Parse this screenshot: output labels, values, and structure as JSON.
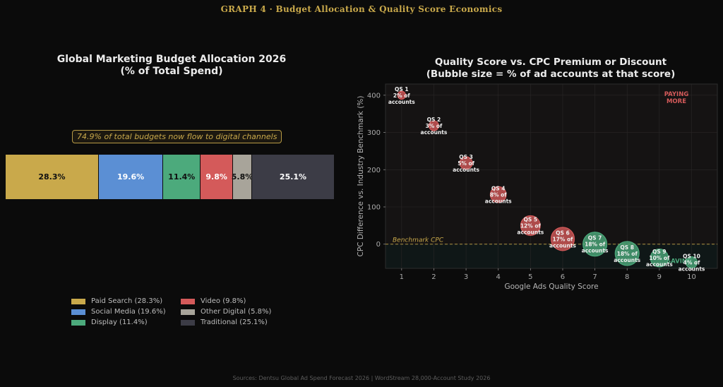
{
  "super_title": "GRAPH 4  ·  Budget Allocation & Quality Score Economics",
  "sources": "Sources: Dentsu Global Ad Spend Forecast 2026 | WordStream 28,000-Account Study 2026",
  "colors": {
    "gold": "#c9a94b",
    "blue": "#5b8fd4",
    "green": "#4caa7c",
    "red": "#d45a5a",
    "gray": "#a8a49a",
    "dark": "#3c3c46"
  },
  "chart_data": [
    {
      "type": "bar",
      "stacked": true,
      "title": "Global Marketing Budget Allocation 2026",
      "subtitle": "(% of Total Spend)",
      "annotation": "74.9% of total budgets now flow to digital channels",
      "series": [
        {
          "name": "Paid Search",
          "value": 28.3,
          "label": "28.3%",
          "legend": "Paid Search (28.3%)",
          "color": "#c9a94b",
          "text_color": "#111111"
        },
        {
          "name": "Social Media",
          "value": 19.6,
          "label": "19.6%",
          "legend": "Social Media (19.6%)",
          "color": "#5b8fd4",
          "text_color": "#ffffff"
        },
        {
          "name": "Display",
          "value": 11.4,
          "label": "11.4%",
          "legend": "Display (11.4%)",
          "color": "#4caa7c",
          "text_color": "#111111"
        },
        {
          "name": "Video",
          "value": 9.8,
          "label": "9.8%",
          "legend": "Video (9.8%)",
          "color": "#d45a5a",
          "text_color": "#ffffff"
        },
        {
          "name": "Other Digital",
          "value": 5.8,
          "label": "5.8%",
          "legend": "Other Digital (5.8%)",
          "color": "#a8a49a",
          "text_color": "#111111"
        },
        {
          "name": "Traditional",
          "value": 25.1,
          "label": "25.1%",
          "legend": "Traditional (25.1%)",
          "color": "#3c3c46",
          "text_color": "#ffffff"
        }
      ],
      "legend_position": "bottom"
    },
    {
      "type": "scatter",
      "bubble": true,
      "title": "Quality Score vs. CPC Premium or Discount",
      "subtitle": "(Bubble size = % of ad accounts at that score)",
      "xlabel": "Google Ads Quality Score",
      "ylabel": "CPC Difference vs. Industry Benchmark (%)",
      "xlim": [
        0.5,
        10.8
      ],
      "ylim": [
        -65,
        430
      ],
      "xticks": [
        "1",
        "2",
        "3",
        "4",
        "5",
        "6",
        "7",
        "8",
        "9",
        "10"
      ],
      "yticks": [
        "0",
        "100",
        "200",
        "300",
        "400"
      ],
      "grid": true,
      "benchmark_label": "Benchmark CPC",
      "zone_labels": {
        "paying_more": "PAYING\nMORE",
        "saving": "SAVING"
      },
      "points": [
        {
          "x": 1,
          "y": 400,
          "size_pct": 2,
          "label": "QS 1\n2% of\naccounts"
        },
        {
          "x": 2,
          "y": 318,
          "size_pct": 3,
          "label": "QS 2\n3% of\naccounts"
        },
        {
          "x": 3,
          "y": 218,
          "size_pct": 5,
          "label": "QS 3\n5% of\naccounts"
        },
        {
          "x": 4,
          "y": 133,
          "size_pct": 8,
          "label": "QS 4\n8% of\naccounts"
        },
        {
          "x": 5,
          "y": 50,
          "size_pct": 12,
          "label": "QS 5\n12% of\naccounts"
        },
        {
          "x": 6,
          "y": 14,
          "size_pct": 17,
          "label": "QS 6\n17% of\naccounts"
        },
        {
          "x": 7,
          "y": 0,
          "size_pct": 18,
          "label": "QS 7\n18% of\naccounts"
        },
        {
          "x": 8,
          "y": -25,
          "size_pct": 18,
          "label": "QS 8\n18% of\naccounts"
        },
        {
          "x": 9,
          "y": -37,
          "size_pct": 10,
          "label": "QS 9\n10% of\naccounts"
        },
        {
          "x": 10,
          "y": -49,
          "size_pct": 4,
          "label": "QS 10\n4% of\naccounts"
        }
      ]
    }
  ]
}
